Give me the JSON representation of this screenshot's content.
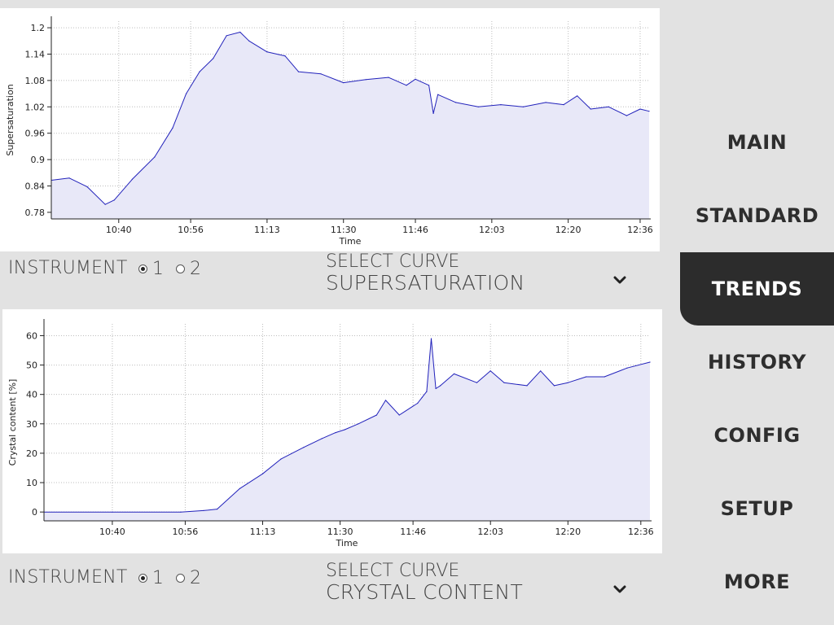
{
  "nav": {
    "items": [
      {
        "label": "MAIN",
        "active": false
      },
      {
        "label": "STANDARD",
        "active": false
      },
      {
        "label": "TRENDS",
        "active": true
      },
      {
        "label": "HISTORY",
        "active": false
      },
      {
        "label": "CONFIG",
        "active": false
      },
      {
        "label": "SETUP",
        "active": false
      },
      {
        "label": "MORE",
        "active": false
      }
    ]
  },
  "trend1": {
    "instrument_label": "INSTRUMENT",
    "instrument_options": [
      "1",
      "2"
    ],
    "instrument_selected": "1",
    "select_title": "SELECT CURVE",
    "select_value": "SUPERSATURATION"
  },
  "trend2": {
    "instrument_label": "INSTRUMENT",
    "instrument_options": [
      "1",
      "2"
    ],
    "instrument_selected": "1",
    "select_title": "SELECT CURVE",
    "select_value": "CRYSTAL CONTENT"
  },
  "colors": {
    "line": "#2222bb",
    "fill": "#e8e8f8",
    "active_nav": "#2c2c2c"
  },
  "icons": {
    "select_chevron": "chevron-down-icon",
    "radio_selected": "radio-checked-icon",
    "radio_unselected": "radio-unchecked-icon"
  },
  "chart_data": [
    {
      "type": "area",
      "title": "",
      "xlabel": "Time",
      "ylabel": "Supersaturation",
      "x_ticks": [
        "10:40",
        "10:56",
        "11:13",
        "11:30",
        "11:46",
        "12:03",
        "12:20",
        "12:36"
      ],
      "y_ticks": [
        "0.78",
        "0.84",
        "0.9",
        "0.96",
        "1.02",
        "1.08",
        "1.14",
        "1.2"
      ],
      "grid": true,
      "ylim": [
        0.765,
        1.215
      ],
      "xlim": [
        "10:25",
        "12:38"
      ],
      "series": [
        {
          "x": [
            "10:25",
            "10:29",
            "10:33",
            "10:37",
            "10:39",
            "10:43",
            "10:48",
            "10:52",
            "10:55",
            "10:58",
            "11:01",
            "11:04",
            "11:07",
            "11:09",
            "11:13",
            "11:17",
            "11:20",
            "11:25",
            "11:30",
            "11:35",
            "11:40",
            "11:44",
            "11:46",
            "11:49",
            "11:50",
            "11:51",
            "11:55",
            "12:00",
            "12:05",
            "12:10",
            "12:15",
            "12:19",
            "12:22",
            "12:25",
            "12:29",
            "12:33",
            "12:36",
            "12:38"
          ],
          "y": [
            0.853,
            0.858,
            0.838,
            0.798,
            0.808,
            0.855,
            0.906,
            0.972,
            1.05,
            1.1,
            1.13,
            1.182,
            1.19,
            1.17,
            1.145,
            1.136,
            1.1,
            1.095,
            1.075,
            1.082,
            1.087,
            1.069,
            1.083,
            1.069,
            1.005,
            1.048,
            1.03,
            1.02,
            1.025,
            1.02,
            1.03,
            1.025,
            1.045,
            1.015,
            1.02,
            1.0,
            1.015,
            1.01
          ]
        }
      ]
    },
    {
      "type": "area",
      "title": "",
      "xlabel": "Time",
      "ylabel": "Crystal content [%]",
      "x_ticks": [
        "10:40",
        "10:56",
        "11:13",
        "11:30",
        "11:46",
        "12:03",
        "12:20",
        "12:36"
      ],
      "y_ticks": [
        "0",
        "10",
        "20",
        "30",
        "40",
        "50",
        "60"
      ],
      "grid": true,
      "ylim": [
        -3,
        64
      ],
      "xlim": [
        "10:25",
        "12:38"
      ],
      "series": [
        {
          "x": [
            "10:25",
            "10:40",
            "10:55",
            "11:00",
            "11:03",
            "11:08",
            "11:13",
            "11:17",
            "11:22",
            "11:26",
            "11:29",
            "11:31",
            "11:34",
            "11:38",
            "11:40",
            "11:43",
            "11:47",
            "11:48",
            "11:49",
            "11:50",
            "11:51",
            "11:52",
            "11:55",
            "12:00",
            "12:03",
            "12:06",
            "12:11",
            "12:14",
            "12:17",
            "12:20",
            "12:24",
            "12:28",
            "12:33",
            "12:38"
          ],
          "y": [
            0,
            0,
            0,
            0.5,
            1,
            8,
            13,
            18,
            22,
            25,
            27,
            28,
            30,
            33,
            38,
            33,
            37,
            39,
            41,
            59,
            42,
            43,
            47,
            44,
            48,
            44,
            43,
            48,
            43,
            44,
            46,
            46,
            49,
            51
          ]
        }
      ]
    }
  ]
}
